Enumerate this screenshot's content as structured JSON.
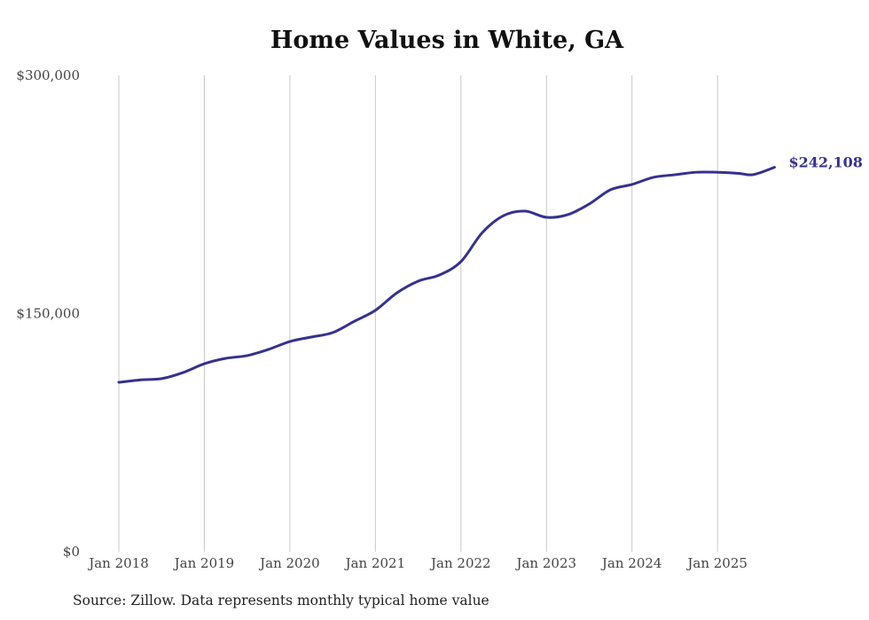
{
  "chart_data": {
    "type": "line",
    "title": "Home Values in White, GA",
    "xlabel": "",
    "ylabel": "",
    "ylim": [
      0,
      300000
    ],
    "yticks": [
      0,
      150000,
      300000
    ],
    "ytick_labels": [
      "$0",
      "$150,000",
      "$300,000"
    ],
    "xtick_labels": [
      "Jan 2018",
      "Jan 2019",
      "Jan 2020",
      "Jan 2021",
      "Jan 2022",
      "Jan 2023",
      "Jan 2024",
      "Jan 2025"
    ],
    "grid": "vertical",
    "line_color": "#35318f",
    "end_label": "$242,108",
    "series": [
      {
        "name": "Typical home value",
        "x": [
          "2018-01",
          "2018-04",
          "2018-07",
          "2018-10",
          "2019-01",
          "2019-04",
          "2019-07",
          "2019-10",
          "2020-01",
          "2020-04",
          "2020-07",
          "2020-10",
          "2021-01",
          "2021-04",
          "2021-07",
          "2021-10",
          "2022-01",
          "2022-04",
          "2022-07",
          "2022-10",
          "2023-01",
          "2023-04",
          "2023-07",
          "2023-10",
          "2024-01",
          "2024-04",
          "2024-07",
          "2024-10",
          "2025-01",
          "2025-04",
          "2025-06",
          "2025-09"
        ],
        "values": [
          106700,
          108200,
          109000,
          112800,
          118400,
          121800,
          123500,
          127400,
          132400,
          135200,
          138000,
          145000,
          152000,
          163000,
          170400,
          174300,
          182700,
          201000,
          211700,
          214500,
          210600,
          212300,
          219000,
          228000,
          231300,
          235800,
          237400,
          239000,
          239000,
          238300,
          237500,
          242108
        ]
      }
    ]
  },
  "source": "Source: Zillow. Data represents monthly typical home value"
}
